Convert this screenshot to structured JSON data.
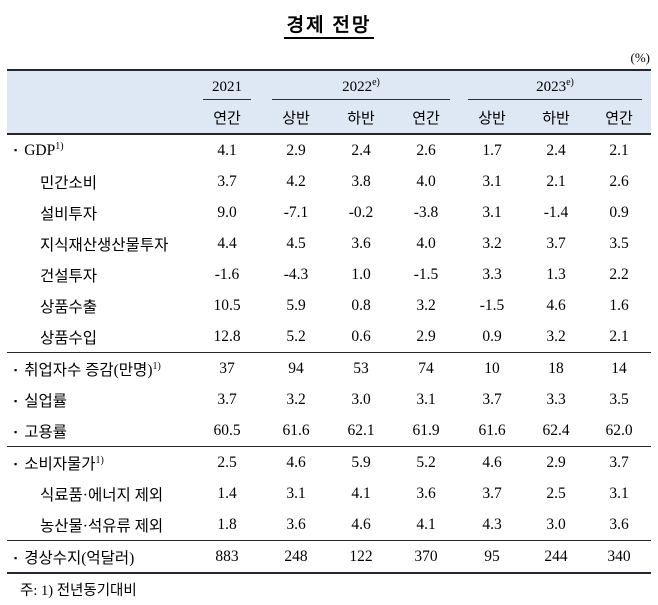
{
  "title": "경제 전망",
  "unit_label": "(%)",
  "icons": {
    "bullet": "▪"
  },
  "colors": {
    "header_bg": "#dde8f4",
    "border_dark": "#23272f",
    "text": "#000000"
  },
  "table": {
    "col_groups": [
      {
        "year": "2021",
        "sup": "",
        "cols": [
          "연간"
        ]
      },
      {
        "year": "2022",
        "sup": "e)",
        "cols": [
          "상반",
          "하반",
          "연간"
        ]
      },
      {
        "year": "2023",
        "sup": "e)",
        "cols": [
          "상반",
          "하반",
          "연간"
        ]
      }
    ],
    "rows": [
      {
        "label": "GDP",
        "sup": "1)",
        "bullet": true,
        "indent": false,
        "section_start": false,
        "values": [
          "4.1",
          "2.9",
          "2.4",
          "2.6",
          "1.7",
          "2.4",
          "2.1"
        ]
      },
      {
        "label": "민간소비",
        "sup": "",
        "bullet": false,
        "indent": true,
        "section_start": false,
        "values": [
          "3.7",
          "4.2",
          "3.8",
          "4.0",
          "3.1",
          "2.1",
          "2.6"
        ]
      },
      {
        "label": "설비투자",
        "sup": "",
        "bullet": false,
        "indent": true,
        "section_start": false,
        "values": [
          "9.0",
          "-7.1",
          "-0.2",
          "-3.8",
          "3.1",
          "-1.4",
          "0.9"
        ]
      },
      {
        "label": "지식재산생산물투자",
        "sup": "",
        "bullet": false,
        "indent": true,
        "section_start": false,
        "values": [
          "4.4",
          "4.5",
          "3.6",
          "4.0",
          "3.2",
          "3.7",
          "3.5"
        ]
      },
      {
        "label": "건설투자",
        "sup": "",
        "bullet": false,
        "indent": true,
        "section_start": false,
        "values": [
          "-1.6",
          "-4.3",
          "1.0",
          "-1.5",
          "3.3",
          "1.3",
          "2.2"
        ]
      },
      {
        "label": "상품수출",
        "sup": "",
        "bullet": false,
        "indent": true,
        "section_start": false,
        "values": [
          "10.5",
          "5.9",
          "0.8",
          "3.2",
          "-1.5",
          "4.6",
          "1.6"
        ]
      },
      {
        "label": "상품수입",
        "sup": "",
        "bullet": false,
        "indent": true,
        "section_start": false,
        "values": [
          "12.8",
          "5.2",
          "0.6",
          "2.9",
          "0.9",
          "3.2",
          "2.1"
        ]
      },
      {
        "label": "취업자수 증감(만명)",
        "sup": "1)",
        "bullet": true,
        "indent": false,
        "section_start": true,
        "values": [
          "37",
          "94",
          "53",
          "74",
          "10",
          "18",
          "14"
        ]
      },
      {
        "label": "실업률",
        "sup": "",
        "bullet": true,
        "indent": false,
        "section_start": false,
        "values": [
          "3.7",
          "3.2",
          "3.0",
          "3.1",
          "3.7",
          "3.3",
          "3.5"
        ]
      },
      {
        "label": "고용률",
        "sup": "",
        "bullet": true,
        "indent": false,
        "section_start": false,
        "values": [
          "60.5",
          "61.6",
          "62.1",
          "61.9",
          "61.6",
          "62.4",
          "62.0"
        ]
      },
      {
        "label": "소비자물가",
        "sup": "1)",
        "bullet": true,
        "indent": false,
        "section_start": true,
        "values": [
          "2.5",
          "4.6",
          "5.9",
          "5.2",
          "4.6",
          "2.9",
          "3.7"
        ]
      },
      {
        "label": "식료품·에너지 제외",
        "sup": "",
        "bullet": false,
        "indent": true,
        "section_start": false,
        "values": [
          "1.4",
          "3.1",
          "4.1",
          "3.6",
          "3.7",
          "2.5",
          "3.1"
        ]
      },
      {
        "label": "농산물·석유류 제외",
        "sup": "",
        "bullet": false,
        "indent": true,
        "section_start": false,
        "values": [
          "1.8",
          "3.6",
          "4.6",
          "4.1",
          "4.3",
          "3.0",
          "3.6"
        ]
      },
      {
        "label": "경상수지(억달러)",
        "sup": "",
        "bullet": true,
        "indent": false,
        "section_start": true,
        "values": [
          "883",
          "248",
          "122",
          "370",
          "95",
          "244",
          "340"
        ]
      }
    ]
  },
  "footnote": "주: 1) 전년동기대비"
}
